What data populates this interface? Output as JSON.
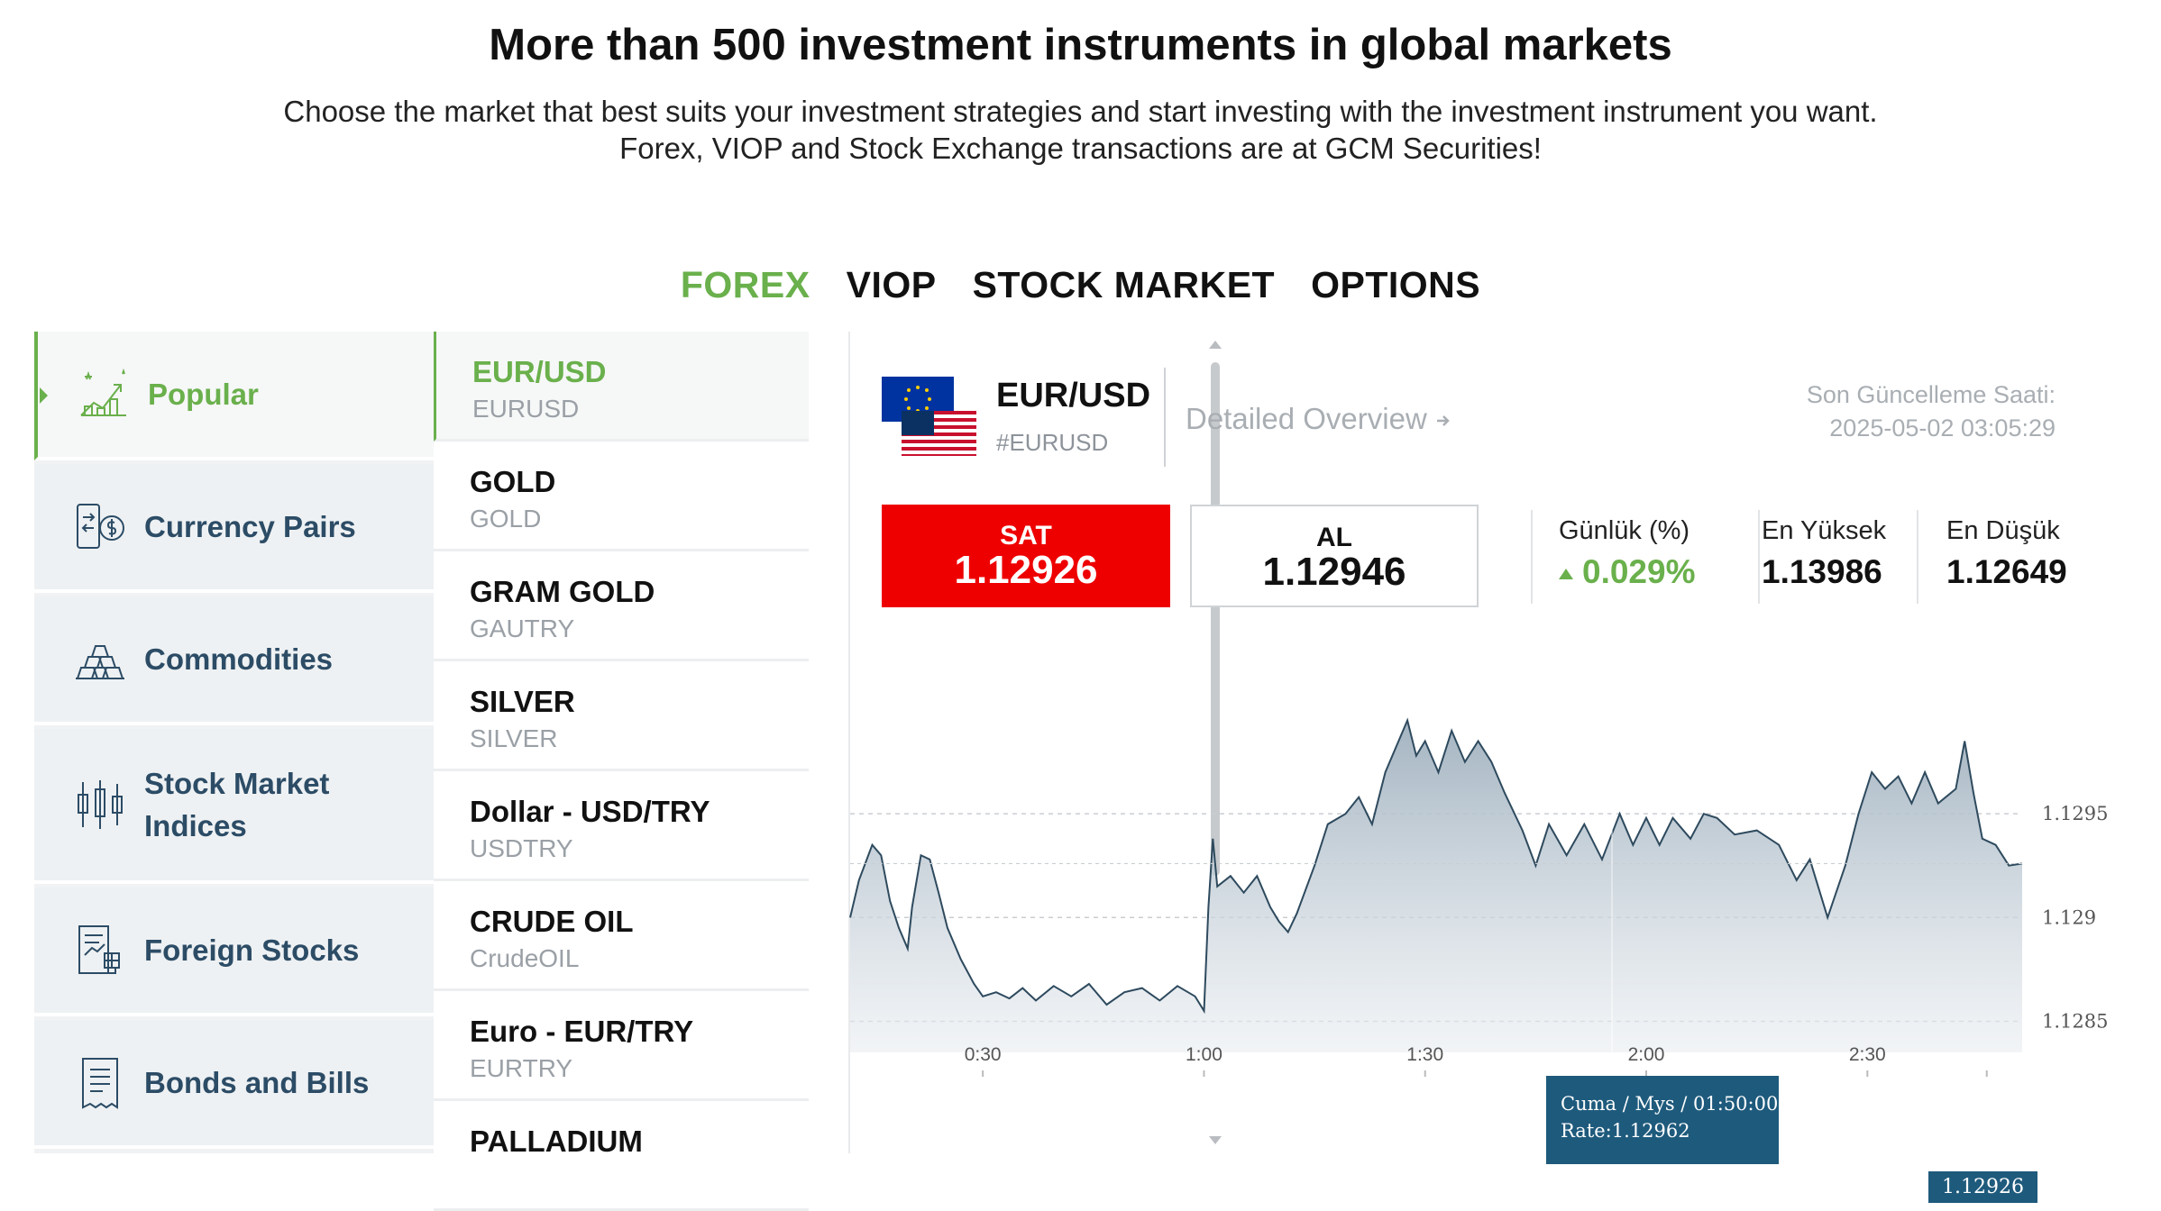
{
  "hero": {
    "title": "More than 500 investment instruments in global markets",
    "subtitle_line1": "Choose the market that best suits your investment strategies and start investing with the investment instrument you want.",
    "subtitle_line2": "Forex, VIOP and Stock Exchange transactions are at GCM Securities!"
  },
  "tabs": [
    {
      "label": "FOREX",
      "active": true
    },
    {
      "label": "VIOP",
      "active": false
    },
    {
      "label": "STOCK MARKET",
      "active": false
    },
    {
      "label": "OPTIONS",
      "active": false
    }
  ],
  "categories": [
    {
      "label": "Popular",
      "icon": "trend-chart-icon",
      "active": true
    },
    {
      "label": "Currency Pairs",
      "icon": "currency-exchange-icon",
      "active": false
    },
    {
      "label": "Commodities",
      "icon": "gold-bars-icon",
      "active": false
    },
    {
      "label": "Stock Market Indices",
      "icon": "candlestick-icon",
      "active": false
    },
    {
      "label": "Foreign Stocks",
      "icon": "stock-report-icon",
      "active": false
    },
    {
      "label": "Bonds and Bills",
      "icon": "receipt-icon",
      "active": false
    }
  ],
  "instruments": [
    {
      "name": "EUR/USD",
      "code": "EURUSD",
      "active": true
    },
    {
      "name": "GOLD",
      "code": "GOLD",
      "active": false
    },
    {
      "name": "GRAM GOLD",
      "code": "GAUTRY",
      "active": false
    },
    {
      "name": "SILVER",
      "code": "SILVER",
      "active": false
    },
    {
      "name": "Dollar - USD/TRY",
      "code": "USDTRY",
      "active": false
    },
    {
      "name": "CRUDE OIL",
      "code": "CrudeOIL",
      "active": false
    },
    {
      "name": "Euro - EUR/TRY",
      "code": "EURTRY",
      "active": false
    },
    {
      "name": "PALLADIUM",
      "code": "",
      "active": false
    }
  ],
  "detail": {
    "pair": "EUR/USD",
    "code": "#EURUSD",
    "overview_label": "Detailed Overview",
    "updated_label": "Son Güncelleme Saati:",
    "updated_value": "2025-05-02 03:05:29",
    "sell_label": "SAT",
    "sell_value": "1.12926",
    "buy_label": "AL",
    "buy_value": "1.12946",
    "daily_label": "Günlük (%)",
    "daily_value": "0.029%",
    "high_label": "En Yüksek",
    "high_value": "1.13986",
    "low_label": "En Düşük",
    "low_value": "1.12649"
  },
  "colors": {
    "accent": "#6ab04c",
    "navy": "#2c4c66",
    "sell": "#ee0000",
    "chart_line": "#2e4a5e",
    "tooltip": "#1e5a7c"
  },
  "chart_data": {
    "type": "area",
    "x_ticks": [
      "0:30",
      "1:00",
      "1:30",
      "2:00",
      "2:30"
    ],
    "y_ticks": [
      "1.1295",
      "1.129",
      "1.1285"
    ],
    "ylim": [
      1.12835,
      1.13
    ],
    "x_range": [
      0.2,
      2.85
    ],
    "tooltip": {
      "line1": "Cuma / Mys / 01:50:00",
      "line2": "Rate:1.12962"
    },
    "current_label": "1.12926",
    "current_value": 1.12926,
    "points": [
      [
        0.2,
        1.129
      ],
      [
        0.22,
        1.12918
      ],
      [
        0.25,
        1.12935
      ],
      [
        0.27,
        1.1293
      ],
      [
        0.29,
        1.12908
      ],
      [
        0.31,
        1.12895
      ],
      [
        0.33,
        1.12885
      ],
      [
        0.34,
        1.12905
      ],
      [
        0.36,
        1.1293
      ],
      [
        0.38,
        1.12928
      ],
      [
        0.4,
        1.12912
      ],
      [
        0.42,
        1.12895
      ],
      [
        0.45,
        1.1288
      ],
      [
        0.48,
        1.12868
      ],
      [
        0.5,
        1.12862
      ],
      [
        0.53,
        1.12864
      ],
      [
        0.56,
        1.12861
      ],
      [
        0.59,
        1.12866
      ],
      [
        0.62,
        1.1286
      ],
      [
        0.66,
        1.12867
      ],
      [
        0.7,
        1.12862
      ],
      [
        0.74,
        1.12868
      ],
      [
        0.78,
        1.12858
      ],
      [
        0.82,
        1.12864
      ],
      [
        0.86,
        1.12866
      ],
      [
        0.9,
        1.1286
      ],
      [
        0.94,
        1.12867
      ],
      [
        0.98,
        1.12862
      ],
      [
        1.0,
        1.12855
      ],
      [
        1.01,
        1.12905
      ],
      [
        1.02,
        1.12938
      ],
      [
        1.03,
        1.12915
      ],
      [
        1.06,
        1.1292
      ],
      [
        1.09,
        1.12912
      ],
      [
        1.12,
        1.1292
      ],
      [
        1.15,
        1.12905
      ],
      [
        1.17,
        1.12898
      ],
      [
        1.19,
        1.12893
      ],
      [
        1.21,
        1.12902
      ],
      [
        1.25,
        1.12925
      ],
      [
        1.28,
        1.12945
      ],
      [
        1.32,
        1.1295
      ],
      [
        1.35,
        1.12958
      ],
      [
        1.38,
        1.12945
      ],
      [
        1.41,
        1.1297
      ],
      [
        1.44,
        1.12985
      ],
      [
        1.46,
        1.12995
      ],
      [
        1.48,
        1.12978
      ],
      [
        1.5,
        1.12985
      ],
      [
        1.53,
        1.1297
      ],
      [
        1.56,
        1.1299
      ],
      [
        1.59,
        1.12975
      ],
      [
        1.62,
        1.12985
      ],
      [
        1.65,
        1.12975
      ],
      [
        1.68,
        1.1296
      ],
      [
        1.72,
        1.12942
      ],
      [
        1.75,
        1.12925
      ],
      [
        1.78,
        1.12945
      ],
      [
        1.82,
        1.1293
      ],
      [
        1.86,
        1.12945
      ],
      [
        1.9,
        1.12928
      ],
      [
        1.94,
        1.1295
      ],
      [
        1.97,
        1.12935
      ],
      [
        2.0,
        1.12948
      ],
      [
        2.03,
        1.12935
      ],
      [
        2.06,
        1.12948
      ],
      [
        2.1,
        1.12938
      ],
      [
        2.13,
        1.1295
      ],
      [
        2.16,
        1.12948
      ],
      [
        2.2,
        1.1294
      ],
      [
        2.25,
        1.12942
      ],
      [
        2.3,
        1.12935
      ],
      [
        2.34,
        1.12918
      ],
      [
        2.37,
        1.12928
      ],
      [
        2.41,
        1.129
      ],
      [
        2.45,
        1.12925
      ],
      [
        2.48,
        1.1295
      ],
      [
        2.51,
        1.1297
      ],
      [
        2.54,
        1.12962
      ],
      [
        2.57,
        1.12968
      ],
      [
        2.6,
        1.12955
      ],
      [
        2.63,
        1.1297
      ],
      [
        2.66,
        1.12955
      ],
      [
        2.7,
        1.12962
      ],
      [
        2.72,
        1.12985
      ],
      [
        2.74,
        1.1296
      ],
      [
        2.76,
        1.12938
      ],
      [
        2.79,
        1.12935
      ],
      [
        2.82,
        1.12925
      ],
      [
        2.85,
        1.12926
      ]
    ]
  }
}
